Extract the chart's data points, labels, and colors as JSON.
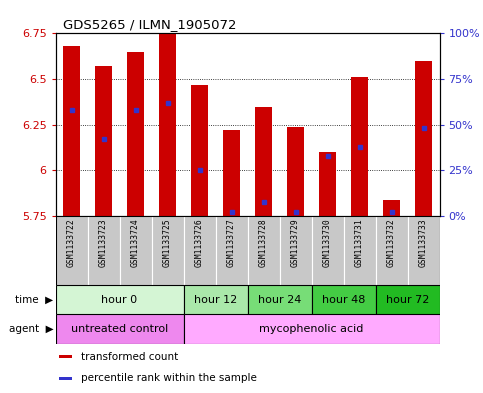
{
  "title": "GDS5265 / ILMN_1905072",
  "samples": [
    "GSM1133722",
    "GSM1133723",
    "GSM1133724",
    "GSM1133725",
    "GSM1133726",
    "GSM1133727",
    "GSM1133728",
    "GSM1133729",
    "GSM1133730",
    "GSM1133731",
    "GSM1133732",
    "GSM1133733"
  ],
  "bar_values": [
    6.68,
    6.57,
    6.65,
    6.75,
    6.47,
    6.22,
    6.35,
    6.24,
    6.1,
    6.51,
    5.84,
    6.6
  ],
  "blue_dot_values": [
    6.33,
    6.17,
    6.33,
    6.37,
    6.0,
    5.77,
    5.83,
    5.77,
    6.08,
    6.13,
    5.77,
    6.23
  ],
  "ymin": 5.75,
  "ymax": 6.75,
  "yticks": [
    5.75,
    6.0,
    6.25,
    6.5,
    6.75
  ],
  "ytick_labels": [
    "5.75",
    "6",
    "6.25",
    "6.5",
    "6.75"
  ],
  "right_yticks_pct": [
    0,
    25,
    50,
    75,
    100
  ],
  "right_ytick_labels": [
    "0%",
    "25%",
    "50%",
    "75%",
    "100%"
  ],
  "bar_color": "#cc0000",
  "dot_color": "#3333cc",
  "grid_color": "#000000",
  "bg_color": "#ffffff",
  "sample_cell_color": "#c8c8c8",
  "time_groups": [
    {
      "label": "hour 0",
      "start": 0,
      "end": 4,
      "color": "#d4f5d4"
    },
    {
      "label": "hour 12",
      "start": 4,
      "end": 6,
      "color": "#aae8aa"
    },
    {
      "label": "hour 24",
      "start": 6,
      "end": 8,
      "color": "#77dd77"
    },
    {
      "label": "hour 48",
      "start": 8,
      "end": 10,
      "color": "#44cc44"
    },
    {
      "label": "hour 72",
      "start": 10,
      "end": 12,
      "color": "#22bb22"
    }
  ],
  "agent_groups": [
    {
      "label": "untreated control",
      "start": 0,
      "end": 4,
      "color": "#ee88ee"
    },
    {
      "label": "mycophenolic acid",
      "start": 4,
      "end": 12,
      "color": "#ffaaff"
    }
  ],
  "legend_items": [
    {
      "label": "transformed count",
      "color": "#cc0000"
    },
    {
      "label": "percentile rank within the sample",
      "color": "#3333cc"
    }
  ],
  "left_tick_color": "#cc0000",
  "right_tick_color": "#3333cc",
  "border_color": "#000000"
}
